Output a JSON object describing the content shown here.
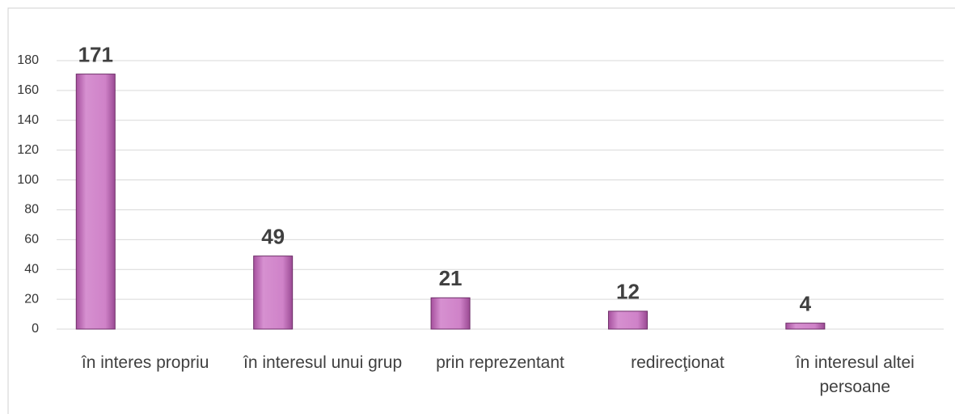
{
  "chart_data": {
    "type": "bar",
    "categories": [
      "în interes propriu",
      "în interesul unui grup",
      "prin reprezentant",
      "redirecţionat",
      "în interesul altei persoane"
    ],
    "values": [
      171,
      49,
      21,
      12,
      4
    ],
    "color": "#c878c0",
    "ylim": [
      0,
      180
    ],
    "yticks": [
      0,
      20,
      40,
      60,
      80,
      100,
      120,
      140,
      160,
      180
    ],
    "grid": true
  }
}
